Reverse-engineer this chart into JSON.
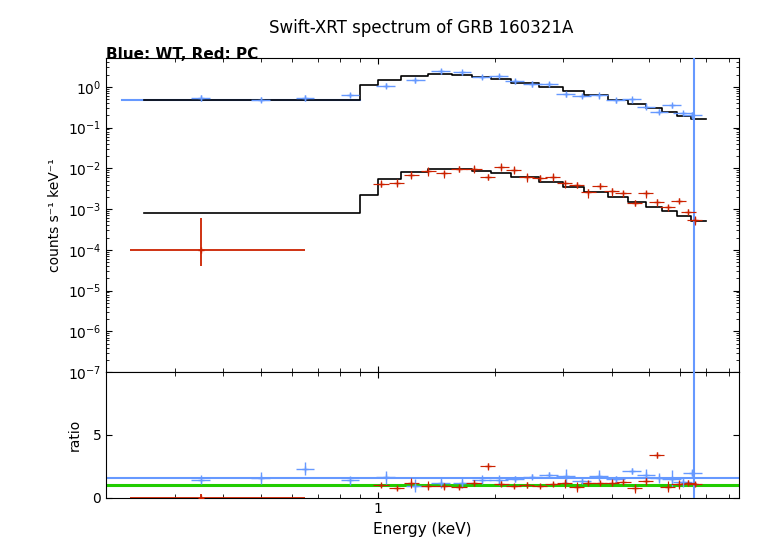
{
  "title": "Swift-XRT spectrum of GRB 160321A",
  "subtitle": "Blue: WT, Red: PC",
  "xlabel": "Energy (keV)",
  "ylabel_top": "counts s⁻¹ keV⁻¹",
  "ylabel_bottom": "ratio",
  "xlim": [
    0.2,
    8.5
  ],
  "ylim_top_lo": 1e-07,
  "ylim_top_hi": 5.0,
  "ylim_bottom_lo": 0.0,
  "ylim_bottom_hi": 10.0,
  "wt_color": "#6699ff",
  "pc_color": "#cc2200",
  "model_color": "black",
  "green_line_color": "#22cc00",
  "blue_ratio_line": 1.55,
  "green_ratio_line": 1.0,
  "vline_x": 6.5,
  "background_color": "white",
  "wt_flat_y": 0.48,
  "wt_flat_x_lo": 0.22,
  "wt_flat_x_hi": 0.9,
  "pc_low_x": 0.35,
  "pc_low_y": 0.0001,
  "pc_low_xerr_lo": 0.12,
  "pc_low_xerr_hi": 0.3,
  "pc_low_yerr_lo": 6e-05,
  "pc_low_yerr_hi": 0.0005
}
